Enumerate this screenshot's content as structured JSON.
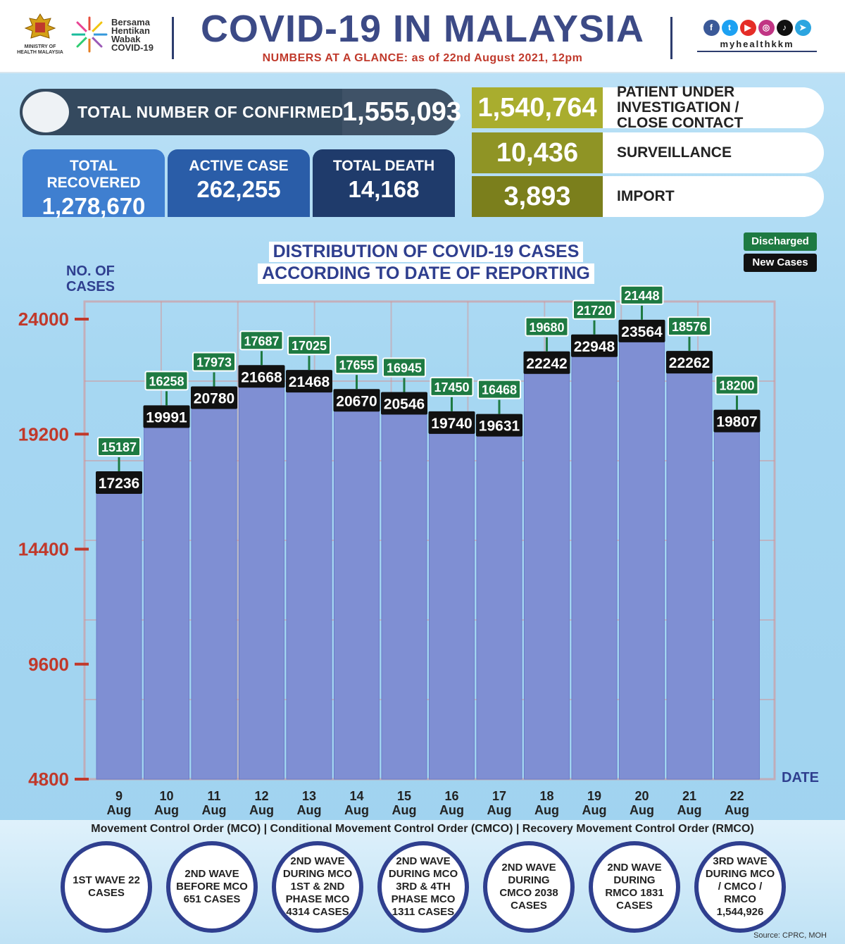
{
  "header": {
    "moh_text": "MINISTRY OF HEALTH MALAYSIA",
    "bersama_lines": [
      "Bersama",
      "Hentikan",
      "Wabak",
      "COVID-19"
    ],
    "title": "COVID-19 IN MALAYSIA",
    "subtitle": "NUMBERS AT A GLANCE: as of 22nd August 2021, 12pm",
    "social_handle": "myhealthkkm",
    "social_icons": [
      "facebook-icon",
      "twitter-icon",
      "youtube-icon",
      "instagram-icon",
      "tiktok-icon",
      "telegram-icon"
    ]
  },
  "summary": {
    "total_label": "TOTAL NUMBER OF CONFIRMED CASES",
    "total_value": "1,555,093",
    "recovered_label": "TOTAL RECOVERED",
    "recovered_value": "1,278,670",
    "active_label": "ACTIVE CASE",
    "active_value": "262,255",
    "death_label": "TOTAL DEATH",
    "death_value": "14,168"
  },
  "side": {
    "pui_value": "1,540,764",
    "pui_label_1": "PATIENT UNDER INVESTIGATION /",
    "pui_label_2": "CLOSE CONTACT",
    "surv_value": "10,436",
    "surv_label": "SURVEILLANCE",
    "import_value": "3,893",
    "import_label": "IMPORT"
  },
  "colors": {
    "recovered": "#3f7fd0",
    "active": "#2a5da8",
    "death": "#1f3b6b",
    "pui": "#a9ad2e",
    "surveillance": "#8f9425",
    "import": "#7b7f1c",
    "bar": "#7f8fd3",
    "discharged": "#1e7a42",
    "new_cases": "#111111",
    "axis": "#c0392b"
  },
  "chart_data": {
    "type": "bar",
    "title_line_1": "DISTRIBUTION OF COVID-19 CASES",
    "title_line_2": "ACCORDING TO DATE OF REPORTING",
    "ylabel_1": "NO. OF",
    "ylabel_2": "CASES",
    "xlabel": "DATE",
    "categories": [
      [
        "9",
        "Aug"
      ],
      [
        "10",
        "Aug"
      ],
      [
        "11",
        "Aug"
      ],
      [
        "12",
        "Aug"
      ],
      [
        "13",
        "Aug"
      ],
      [
        "14",
        "Aug"
      ],
      [
        "15",
        "Aug"
      ],
      [
        "16",
        "Aug"
      ],
      [
        "17",
        "Aug"
      ],
      [
        "18",
        "Aug"
      ],
      [
        "19",
        "Aug"
      ],
      [
        "20",
        "Aug"
      ],
      [
        "21",
        "Aug"
      ],
      [
        "22",
        "Aug"
      ]
    ],
    "series": [
      {
        "name": "New Cases",
        "values": [
          17236,
          19991,
          20780,
          21668,
          21468,
          20670,
          20546,
          19740,
          19631,
          22242,
          22948,
          23564,
          22262,
          19807
        ]
      },
      {
        "name": "Discharged",
        "values": [
          15187,
          16258,
          17973,
          17687,
          17025,
          17655,
          16945,
          17450,
          16468,
          19680,
          21720,
          21448,
          18576,
          18200
        ]
      }
    ],
    "yticks": [
      4800,
      9600,
      14400,
      19200,
      24000
    ],
    "ylim": [
      4800,
      24000
    ],
    "legend": [
      "Discharged",
      "New Cases"
    ],
    "legend_position": "top-right"
  },
  "footer": {
    "caption": "Movement Control Order (MCO) | Conditional Movement Control Order (CMCO) | Recovery Movement Control Order (RMCO)",
    "waves": [
      "1ST WAVE 22 CASES",
      "2ND WAVE BEFORE MCO 651 CASES",
      "2ND WAVE DURING MCO 1ST & 2ND PHASE MCO 4314 CASES",
      "2ND WAVE DURING MCO 3RD & 4TH PHASE MCO 1311 CASES",
      "2ND WAVE DURING CMCO 2038 CASES",
      "2ND WAVE DURING RMCO 1831 CASES",
      "3RD WAVE DURING MCO / CMCO / RMCO 1,544,926"
    ],
    "source": "Source: CPRC, MOH"
  }
}
